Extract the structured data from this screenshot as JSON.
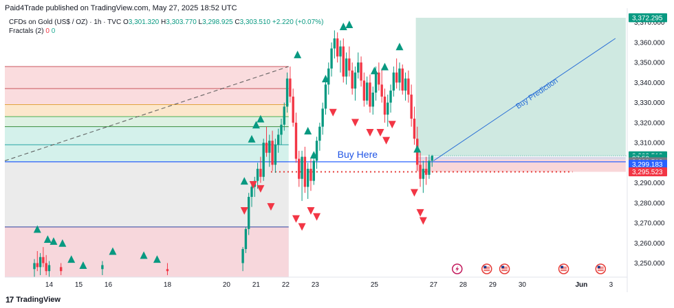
{
  "header": {
    "published_by": "Paid4Trade published on TradingView.com, May 27, 2025 18:52 UTC"
  },
  "legend": {
    "symbol": "CFDs on Gold (US$ / OZ) · 1h · TVC",
    "o_label": "O",
    "o_value": "3,301.320",
    "h_label": "H",
    "h_value": "3,303.770",
    "l_label": "L",
    "l_value": "3,298.925",
    "c_label": "C",
    "c_value": "3,303.510",
    "change": "+2.220 (+0.07%)",
    "indicator": "Fractals (2)",
    "indicator_val_up": "0",
    "indicator_val_dn": "0"
  },
  "footer": {
    "brand": "TradingView"
  },
  "colors": {
    "bullish": "#089981",
    "bearish": "#f23645",
    "blue_line": "#2962ff",
    "fractal_up": "#089981",
    "fractal_down": "#f23645",
    "target_zone": "#cfe9e1",
    "stop_zone": "#f9d6d8"
  },
  "annotations": {
    "buy_here": "Buy Here",
    "buy_prediction": "Buy Prediction"
  },
  "chart_data": {
    "type": "candlestick",
    "symbol": "XAUUSD (TVC)",
    "interval": "1h",
    "ylim": [
      3243,
      3375
    ],
    "y_ticks": [
      3250,
      3260,
      3270,
      3280,
      3290,
      3300,
      3310,
      3320,
      3330,
      3340,
      3350,
      3360,
      3370
    ],
    "y_tick_labels": [
      "3,250.000",
      "3,260.000",
      "3,270.000",
      "3,280.000",
      "3,290.000",
      "3,300.000",
      "3,310.000",
      "3,320.000",
      "3,330.000",
      "3,340.000",
      "3,350.000",
      "3,360.000",
      "3,370.000"
    ],
    "x_ticks": [
      {
        "t": 14,
        "label": "14"
      },
      {
        "t": 15,
        "label": "15"
      },
      {
        "t": 16,
        "label": "16"
      },
      {
        "t": 18,
        "label": "18"
      },
      {
        "t": 20,
        "label": "20"
      },
      {
        "t": 21,
        "label": "21"
      },
      {
        "t": 22,
        "label": "22"
      },
      {
        "t": 23,
        "label": "23"
      },
      {
        "t": 25,
        "label": "25"
      },
      {
        "t": 27,
        "label": "27"
      },
      {
        "t": 28,
        "label": "28"
      },
      {
        "t": 29,
        "label": "29"
      },
      {
        "t": 30,
        "label": "30"
      },
      {
        "t": 32,
        "label": "Jun"
      },
      {
        "t": 33,
        "label": "3"
      }
    ],
    "price_labels": [
      {
        "label": "3,372.295",
        "price": 3372.3,
        "bg": "#089981"
      },
      {
        "label": "3,303.510",
        "price": 3303.5,
        "bg": "#089981"
      },
      {
        "label": "07:59",
        "price": 3302.1,
        "bg": "#089981"
      },
      {
        "label": "3,300.512",
        "price": 3300.5,
        "bg": "#787b86"
      },
      {
        "label": "3,299.183",
        "price": 3299.2,
        "bg": "#2962ff"
      },
      {
        "label": "3,295.523",
        "price": 3295.5,
        "bg": "#f23645"
      }
    ],
    "fib_levels": [
      {
        "price": 3348,
        "color": "#c9565d",
        "fill": "#f9d6d8"
      },
      {
        "price": 3337,
        "color": "#c9565d",
        "fill": "#f9d6d8"
      },
      {
        "price": 3329,
        "color": "#e2a33b",
        "fill": "#fbe3c3"
      },
      {
        "price": 3323,
        "color": "#4caf50",
        "fill": "#d7eede"
      },
      {
        "price": 3318,
        "color": "#388e3c",
        "fill": "#cdeee8"
      },
      {
        "price": 3309,
        "color": "#22a3a3",
        "fill": "#cdeee8"
      },
      {
        "price": 3300.5,
        "color": "#7d7d7d",
        "fill": "#e8e8e8"
      },
      {
        "price": 3268,
        "color": "#2a3f9e",
        "fill": "#d2dcfb"
      }
    ],
    "candles": [
      {
        "t": 13.5,
        "o": 3247,
        "h": 3252,
        "l": 3243,
        "c": 3250
      },
      {
        "t": 13.6,
        "o": 3250,
        "h": 3256,
        "l": 3246,
        "c": 3248
      },
      {
        "t": 13.7,
        "o": 3248,
        "h": 3255,
        "l": 3244,
        "c": 3253
      },
      {
        "t": 13.8,
        "o": 3253,
        "h": 3258,
        "l": 3248,
        "c": 3250
      },
      {
        "t": 13.9,
        "o": 3250,
        "h": 3254,
        "l": 3244,
        "c": 3246
      },
      {
        "t": 14.0,
        "o": 3246,
        "h": 3251,
        "l": 3243,
        "c": 3249
      },
      {
        "t": 14.4,
        "o": 3248,
        "h": 3250,
        "l": 3244,
        "c": 3246
      },
      {
        "t": 15.8,
        "o": 3247,
        "h": 3251,
        "l": 3244,
        "c": 3249
      },
      {
        "t": 18.0,
        "o": 3247,
        "h": 3250,
        "l": 3244,
        "c": 3246
      },
      {
        "t": 20.55,
        "o": 3250,
        "h": 3258,
        "l": 3246,
        "c": 3257
      },
      {
        "t": 20.65,
        "o": 3257,
        "h": 3268,
        "l": 3255,
        "c": 3267
      },
      {
        "t": 20.75,
        "o": 3267,
        "h": 3285,
        "l": 3264,
        "c": 3283
      },
      {
        "t": 20.85,
        "o": 3283,
        "h": 3290,
        "l": 3278,
        "c": 3288
      },
      {
        "t": 20.95,
        "o": 3288,
        "h": 3293,
        "l": 3283,
        "c": 3291
      },
      {
        "t": 21.05,
        "o": 3291,
        "h": 3300,
        "l": 3287,
        "c": 3297
      },
      {
        "t": 21.15,
        "o": 3297,
        "h": 3303,
        "l": 3290,
        "c": 3293
      },
      {
        "t": 21.25,
        "o": 3293,
        "h": 3312,
        "l": 3291,
        "c": 3310
      },
      {
        "t": 21.35,
        "o": 3310,
        "h": 3318,
        "l": 3303,
        "c": 3305
      },
      {
        "t": 21.45,
        "o": 3305,
        "h": 3314,
        "l": 3298,
        "c": 3311
      },
      {
        "t": 21.55,
        "o": 3311,
        "h": 3316,
        "l": 3296,
        "c": 3299
      },
      {
        "t": 21.65,
        "o": 3299,
        "h": 3312,
        "l": 3295,
        "c": 3309
      },
      {
        "t": 21.75,
        "o": 3309,
        "h": 3317,
        "l": 3305,
        "c": 3314
      },
      {
        "t": 21.85,
        "o": 3314,
        "h": 3322,
        "l": 3309,
        "c": 3319
      },
      {
        "t": 21.95,
        "o": 3319,
        "h": 3330,
        "l": 3316,
        "c": 3328
      },
      {
        "t": 22.05,
        "o": 3328,
        "h": 3345,
        "l": 3325,
        "c": 3342
      },
      {
        "t": 22.15,
        "o": 3342,
        "h": 3348,
        "l": 3330,
        "c": 3333
      },
      {
        "t": 22.25,
        "o": 3333,
        "h": 3337,
        "l": 3318,
        "c": 3320
      },
      {
        "t": 22.35,
        "o": 3320,
        "h": 3325,
        "l": 3300,
        "c": 3302
      },
      {
        "t": 22.45,
        "o": 3302,
        "h": 3306,
        "l": 3288,
        "c": 3292
      },
      {
        "t": 22.55,
        "o": 3292,
        "h": 3306,
        "l": 3281,
        "c": 3303
      },
      {
        "t": 22.65,
        "o": 3303,
        "h": 3308,
        "l": 3285,
        "c": 3288
      },
      {
        "t": 22.75,
        "o": 3288,
        "h": 3300,
        "l": 3282,
        "c": 3297
      },
      {
        "t": 22.85,
        "o": 3297,
        "h": 3302,
        "l": 3286,
        "c": 3291
      },
      {
        "t": 22.95,
        "o": 3291,
        "h": 3303,
        "l": 3289,
        "c": 3301
      },
      {
        "t": 23.05,
        "o": 3301,
        "h": 3313,
        "l": 3297,
        "c": 3311
      },
      {
        "t": 23.15,
        "o": 3311,
        "h": 3320,
        "l": 3306,
        "c": 3318
      },
      {
        "t": 23.25,
        "o": 3318,
        "h": 3330,
        "l": 3314,
        "c": 3327
      },
      {
        "t": 23.35,
        "o": 3327,
        "h": 3342,
        "l": 3324,
        "c": 3339
      },
      {
        "t": 23.45,
        "o": 3339,
        "h": 3350,
        "l": 3334,
        "c": 3347
      },
      {
        "t": 23.55,
        "o": 3347,
        "h": 3360,
        "l": 3343,
        "c": 3357
      },
      {
        "t": 23.65,
        "o": 3357,
        "h": 3366,
        "l": 3352,
        "c": 3362
      },
      {
        "t": 23.75,
        "o": 3362,
        "h": 3365,
        "l": 3350,
        "c": 3353
      },
      {
        "t": 23.85,
        "o": 3353,
        "h": 3361,
        "l": 3345,
        "c": 3358
      },
      {
        "t": 23.95,
        "o": 3358,
        "h": 3362,
        "l": 3340,
        "c": 3343
      },
      {
        "t": 24.05,
        "o": 3343,
        "h": 3355,
        "l": 3339,
        "c": 3352
      },
      {
        "t": 24.15,
        "o": 3352,
        "h": 3358,
        "l": 3343,
        "c": 3346
      },
      {
        "t": 24.25,
        "o": 3346,
        "h": 3350,
        "l": 3334,
        "c": 3337
      },
      {
        "t": 24.35,
        "o": 3337,
        "h": 3348,
        "l": 3331,
        "c": 3345
      },
      {
        "t": 24.45,
        "o": 3345,
        "h": 3355,
        "l": 3342,
        "c": 3350
      },
      {
        "t": 24.55,
        "o": 3350,
        "h": 3353,
        "l": 3338,
        "c": 3341
      },
      {
        "t": 24.65,
        "o": 3341,
        "h": 3345,
        "l": 3328,
        "c": 3331
      },
      {
        "t": 24.75,
        "o": 3331,
        "h": 3343,
        "l": 3329,
        "c": 3340
      },
      {
        "t": 24.85,
        "o": 3340,
        "h": 3344,
        "l": 3325,
        "c": 3328
      },
      {
        "t": 24.95,
        "o": 3328,
        "h": 3338,
        "l": 3324,
        "c": 3335
      },
      {
        "t": 25.05,
        "o": 3335,
        "h": 3348,
        "l": 3331,
        "c": 3345
      },
      {
        "t": 25.15,
        "o": 3345,
        "h": 3350,
        "l": 3336,
        "c": 3339
      },
      {
        "t": 25.25,
        "o": 3339,
        "h": 3347,
        "l": 3330,
        "c": 3333
      },
      {
        "t": 25.35,
        "o": 3333,
        "h": 3337,
        "l": 3320,
        "c": 3324
      },
      {
        "t": 25.45,
        "o": 3324,
        "h": 3334,
        "l": 3318,
        "c": 3330
      },
      {
        "t": 25.55,
        "o": 3330,
        "h": 3339,
        "l": 3325,
        "c": 3336
      },
      {
        "t": 25.65,
        "o": 3336,
        "h": 3348,
        "l": 3333,
        "c": 3345
      },
      {
        "t": 25.75,
        "o": 3345,
        "h": 3352,
        "l": 3337,
        "c": 3340
      },
      {
        "t": 25.85,
        "o": 3340,
        "h": 3350,
        "l": 3336,
        "c": 3347
      },
      {
        "t": 25.95,
        "o": 3347,
        "h": 3349,
        "l": 3334,
        "c": 3336
      },
      {
        "t": 26.05,
        "o": 3336,
        "h": 3345,
        "l": 3331,
        "c": 3342
      },
      {
        "t": 26.15,
        "o": 3342,
        "h": 3346,
        "l": 3330,
        "c": 3334
      },
      {
        "t": 26.25,
        "o": 3334,
        "h": 3339,
        "l": 3318,
        "c": 3322
      },
      {
        "t": 26.35,
        "o": 3322,
        "h": 3328,
        "l": 3309,
        "c": 3312
      },
      {
        "t": 26.45,
        "o": 3312,
        "h": 3318,
        "l": 3296,
        "c": 3299
      },
      {
        "t": 26.55,
        "o": 3299,
        "h": 3305,
        "l": 3288,
        "c": 3292
      },
      {
        "t": 26.65,
        "o": 3292,
        "h": 3301,
        "l": 3285,
        "c": 3297
      },
      {
        "t": 26.75,
        "o": 3297,
        "h": 3303,
        "l": 3289,
        "c": 3294
      },
      {
        "t": 26.85,
        "o": 3294,
        "h": 3304,
        "l": 3292,
        "c": 3301
      },
      {
        "t": 26.95,
        "o": 3301,
        "h": 3304,
        "l": 3298,
        "c": 3303.5
      }
    ],
    "fractals_up": [
      {
        "t": 13.6,
        "price": 3267
      },
      {
        "t": 13.95,
        "price": 3262
      },
      {
        "t": 14.15,
        "price": 3261
      },
      {
        "t": 14.45,
        "price": 3260
      },
      {
        "t": 14.75,
        "price": 3252
      },
      {
        "t": 15.15,
        "price": 3249
      },
      {
        "t": 16.15,
        "price": 3256
      },
      {
        "t": 17.2,
        "price": 3254
      },
      {
        "t": 17.65,
        "price": 3252
      },
      {
        "t": 20.6,
        "price": 3291
      },
      {
        "t": 20.85,
        "price": 3312
      },
      {
        "t": 21.0,
        "price": 3319
      },
      {
        "t": 21.15,
        "price": 3322
      },
      {
        "t": 22.4,
        "price": 3354
      },
      {
        "t": 22.75,
        "price": 3316
      },
      {
        "t": 22.95,
        "price": 3304
      },
      {
        "t": 23.35,
        "price": 3342
      },
      {
        "t": 23.95,
        "price": 3368
      },
      {
        "t": 24.15,
        "price": 3369
      },
      {
        "t": 25.0,
        "price": 3346
      },
      {
        "t": 25.35,
        "price": 3348
      },
      {
        "t": 25.85,
        "price": 3358
      },
      {
        "t": 26.45,
        "price": 3307
      }
    ],
    "fractals_down": [
      {
        "t": 20.6,
        "price": 3276
      },
      {
        "t": 20.9,
        "price": 3289
      },
      {
        "t": 21.15,
        "price": 3287
      },
      {
        "t": 21.5,
        "price": 3278
      },
      {
        "t": 22.35,
        "price": 3272
      },
      {
        "t": 22.55,
        "price": 3268
      },
      {
        "t": 22.85,
        "price": 3276
      },
      {
        "t": 23.05,
        "price": 3273
      },
      {
        "t": 23.6,
        "price": 3325
      },
      {
        "t": 24.35,
        "price": 3320
      },
      {
        "t": 24.85,
        "price": 3315
      },
      {
        "t": 25.2,
        "price": 3315
      },
      {
        "t": 25.4,
        "price": 3311
      },
      {
        "t": 25.6,
        "price": 3319
      },
      {
        "t": 26.35,
        "price": 3285
      },
      {
        "t": 26.55,
        "price": 3275
      },
      {
        "t": 26.65,
        "price": 3271
      }
    ],
    "fib_range": {
      "t_start": 12.5,
      "t_end": 22.1
    },
    "dashed_trend": {
      "t1": 12.5,
      "p1": 3301,
      "t2": 22.1,
      "p2": 3348
    },
    "buy_line": {
      "price": 3300.5,
      "t_start": 12.5,
      "t_end": 33.5
    },
    "stop_dots": {
      "price": 3295.5,
      "t_start": 21.5,
      "t_end": 31.7
    },
    "target_box": {
      "t_start": 26.4,
      "t_end": 33.5,
      "p_top": 3372.3,
      "p_bot": 3303.5
    },
    "stop_box": {
      "t_start": 26.4,
      "t_end": 33.5,
      "p_top": 3301.6,
      "p_bot": 3295.5
    },
    "prediction_line": {
      "t1": 27.0,
      "p1": 3301,
      "t2": 33.15,
      "p2": 3362
    },
    "event_icons": [
      {
        "t": 27.8,
        "kind": "flash"
      },
      {
        "t": 28.8,
        "kind": "us-flag"
      },
      {
        "t": 29.4,
        "kind": "us-flag"
      },
      {
        "t": 31.4,
        "kind": "us-flag"
      },
      {
        "t": 32.65,
        "kind": "us-flag"
      }
    ]
  }
}
